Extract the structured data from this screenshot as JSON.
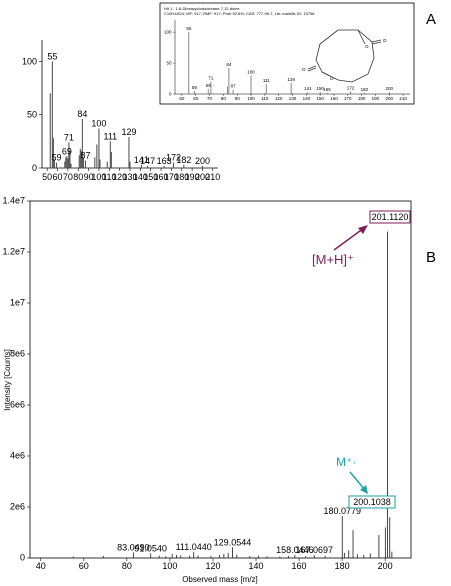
{
  "panels": {
    "a_letter": "A",
    "b_letter": "B"
  },
  "chart_data": [
    {
      "type": "bar",
      "panel": "A",
      "title": "",
      "xlabel": "",
      "ylabel": "",
      "xlim": [
        45,
        215
      ],
      "ylim": [
        0,
        120
      ],
      "x_ticks": [
        50,
        60,
        70,
        80,
        90,
        100,
        110,
        120,
        130,
        140,
        150,
        160,
        170,
        180,
        190,
        200,
        210
      ],
      "y_ticks": [
        0,
        50,
        100
      ],
      "grid": false,
      "color": "#555555",
      "peaks": [
        {
          "x": 53,
          "y": 70
        },
        {
          "x": 55,
          "y": 100
        },
        {
          "x": 56,
          "y": 28
        },
        {
          "x": 57,
          "y": 8
        },
        {
          "x": 59,
          "y": 5
        },
        {
          "x": 67,
          "y": 6
        },
        {
          "x": 68,
          "y": 10
        },
        {
          "x": 69,
          "y": 11
        },
        {
          "x": 70,
          "y": 9
        },
        {
          "x": 71,
          "y": 24
        },
        {
          "x": 72,
          "y": 16
        },
        {
          "x": 73,
          "y": 4
        },
        {
          "x": 81,
          "y": 12
        },
        {
          "x": 82,
          "y": 18
        },
        {
          "x": 83,
          "y": 16
        },
        {
          "x": 84,
          "y": 46
        },
        {
          "x": 85,
          "y": 10
        },
        {
          "x": 87,
          "y": 7
        },
        {
          "x": 96,
          "y": 10
        },
        {
          "x": 98,
          "y": 22
        },
        {
          "x": 100,
          "y": 37
        },
        {
          "x": 101,
          "y": 8
        },
        {
          "x": 108,
          "y": 6
        },
        {
          "x": 111,
          "y": 25
        },
        {
          "x": 112,
          "y": 15
        },
        {
          "x": 129,
          "y": 29
        },
        {
          "x": 130,
          "y": 6
        },
        {
          "x": 141,
          "y": 3
        },
        {
          "x": 147,
          "y": 2
        },
        {
          "x": 163,
          "y": 2
        },
        {
          "x": 172,
          "y": 5
        },
        {
          "x": 182,
          "y": 3
        },
        {
          "x": 200,
          "y": 2
        }
      ],
      "peak_labels": [
        {
          "x": 55,
          "y": 100,
          "text": "55"
        },
        {
          "x": 59,
          "y": 5,
          "text": "59"
        },
        {
          "x": 69,
          "y": 11,
          "text": "69"
        },
        {
          "x": 71,
          "y": 24,
          "text": "71"
        },
        {
          "x": 84,
          "y": 46,
          "text": "84"
        },
        {
          "x": 87,
          "y": 7,
          "text": "87"
        },
        {
          "x": 100,
          "y": 37,
          "text": "100"
        },
        {
          "x": 111,
          "y": 25,
          "text": "111"
        },
        {
          "x": 129,
          "y": 29,
          "text": "129"
        },
        {
          "x": 141,
          "y": 3,
          "text": "141"
        },
        {
          "x": 147,
          "y": 2,
          "text": "147"
        },
        {
          "x": 163,
          "y": 2,
          "text": "163"
        },
        {
          "x": 172,
          "y": 5,
          "text": "172"
        },
        {
          "x": 182,
          "y": 3,
          "text": "182"
        },
        {
          "x": 200,
          "y": 2,
          "text": "200"
        }
      ]
    },
    {
      "type": "bar",
      "panel": "A-inset",
      "header": [
        "Hit 1 : 1,6-Dioxacyclododecane-7,12-dione",
        "C10H16O4; MF: 917; RMF: 917; Prob 92.6%; CAS: 777-95-7; Lib: mainlib; ID: 19756."
      ],
      "xlim": [
        45,
        215
      ],
      "ylim": [
        0,
        110
      ],
      "x_ticks": [
        50,
        60,
        70,
        80,
        90,
        100,
        110,
        120,
        130,
        140,
        150,
        160,
        170,
        180,
        190,
        200,
        210
      ],
      "y_ticks": [
        0,
        50,
        100
      ],
      "color": "#555555",
      "peaks": [
        {
          "x": 55,
          "y": 100
        },
        {
          "x": 59,
          "y": 5
        },
        {
          "x": 69,
          "y": 8
        },
        {
          "x": 71,
          "y": 20
        },
        {
          "x": 83,
          "y": 12
        },
        {
          "x": 84,
          "y": 42
        },
        {
          "x": 87,
          "y": 7
        },
        {
          "x": 100,
          "y": 30
        },
        {
          "x": 111,
          "y": 16
        },
        {
          "x": 129,
          "y": 18
        },
        {
          "x": 141,
          "y": 3
        },
        {
          "x": 150,
          "y": 3
        },
        {
          "x": 155,
          "y": 2
        },
        {
          "x": 172,
          "y": 4
        },
        {
          "x": 182,
          "y": 2
        },
        {
          "x": 200,
          "y": 3
        }
      ],
      "peak_labels": [
        {
          "x": 55,
          "y": 100,
          "text": "55"
        },
        {
          "x": 59,
          "y": 5,
          "text": "59"
        },
        {
          "x": 69,
          "y": 8,
          "text": "69"
        },
        {
          "x": 71,
          "y": 20,
          "text": "71"
        },
        {
          "x": 84,
          "y": 42,
          "text": "84"
        },
        {
          "x": 87,
          "y": 7,
          "text": "87"
        },
        {
          "x": 100,
          "y": 30,
          "text": "100"
        },
        {
          "x": 111,
          "y": 16,
          "text": "111"
        },
        {
          "x": 129,
          "y": 18,
          "text": "129"
        },
        {
          "x": 141,
          "y": 3,
          "text": "141"
        },
        {
          "x": 150,
          "y": 3,
          "text": "150"
        },
        {
          "x": 155,
          "y": 2,
          "text": "155"
        },
        {
          "x": 172,
          "y": 4,
          "text": "172"
        },
        {
          "x": 182,
          "y": 2,
          "text": "182"
        },
        {
          "x": 200,
          "y": 3,
          "text": "200"
        }
      ]
    },
    {
      "type": "bar",
      "panel": "B",
      "title": "",
      "xlabel": "Observed mass [m/z]",
      "ylabel": "Intensity [Counts]",
      "xlim": [
        35,
        212
      ],
      "ylim": [
        0,
        14000000
      ],
      "x_ticks": [
        40,
        60,
        80,
        100,
        120,
        140,
        160,
        180,
        200
      ],
      "y_ticks": [
        {
          "v": 0,
          "label": "0"
        },
        {
          "v": 2000000,
          "label": "2e6"
        },
        {
          "v": 4000000,
          "label": "4e6"
        },
        {
          "v": 6000000,
          "label": "6e6"
        },
        {
          "v": 8000000,
          "label": "8e6"
        },
        {
          "v": 10000000,
          "label": "1e7"
        },
        {
          "v": 12000000,
          "label": "1.2e7"
        },
        {
          "v": 14000000,
          "label": "1.4e7"
        }
      ],
      "color": "#333333",
      "peaks": [
        {
          "x": 55.05,
          "y": 60000
        },
        {
          "x": 69.07,
          "y": 80000
        },
        {
          "x": 83.049,
          "y": 220000
        },
        {
          "x": 91.054,
          "y": 180000
        },
        {
          "x": 95.05,
          "y": 90000
        },
        {
          "x": 98.06,
          "y": 70000
        },
        {
          "x": 101.06,
          "y": 160000
        },
        {
          "x": 103.05,
          "y": 120000
        },
        {
          "x": 105.06,
          "y": 100000
        },
        {
          "x": 109.07,
          "y": 90000
        },
        {
          "x": 111.044,
          "y": 230000
        },
        {
          "x": 113.06,
          "y": 100000
        },
        {
          "x": 119.05,
          "y": 80000
        },
        {
          "x": 123.08,
          "y": 120000
        },
        {
          "x": 125.06,
          "y": 160000
        },
        {
          "x": 127.07,
          "y": 200000
        },
        {
          "x": 129.0544,
          "y": 420000
        },
        {
          "x": 131.07,
          "y": 130000
        },
        {
          "x": 137.08,
          "y": 80000
        },
        {
          "x": 141.09,
          "y": 90000
        },
        {
          "x": 145.06,
          "y": 70000
        },
        {
          "x": 151.08,
          "y": 60000
        },
        {
          "x": 155.08,
          "y": 80000
        },
        {
          "x": 158.0446,
          "y": 120000
        },
        {
          "x": 163.08,
          "y": 70000
        },
        {
          "x": 167.0697,
          "y": 110000
        },
        {
          "x": 172.07,
          "y": 90000
        },
        {
          "x": 180.0779,
          "y": 1650000
        },
        {
          "x": 181.08,
          "y": 200000
        },
        {
          "x": 183.07,
          "y": 300000
        },
        {
          "x": 185.07,
          "y": 1100000
        },
        {
          "x": 187.08,
          "y": 150000
        },
        {
          "x": 190.07,
          "y": 120000
        },
        {
          "x": 193.08,
          "y": 180000
        },
        {
          "x": 197.09,
          "y": 900000
        },
        {
          "x": 200.1038,
          "y": 1200000
        },
        {
          "x": 201.112,
          "y": 12800000
        },
        {
          "x": 202.11,
          "y": 1600000
        },
        {
          "x": 203.11,
          "y": 250000
        }
      ],
      "peak_labels": [
        {
          "x": 83.049,
          "y": 220000,
          "text": "83.0490"
        },
        {
          "x": 91.054,
          "y": 180000,
          "text": "91.0540"
        },
        {
          "x": 111.044,
          "y": 230000,
          "text": "111.0440"
        },
        {
          "x": 129.0544,
          "y": 420000,
          "text": "129.0544"
        },
        {
          "x": 158.0446,
          "y": 120000,
          "text": "158.0446"
        },
        {
          "x": 167.0697,
          "y": 110000,
          "text": "167.0697"
        },
        {
          "x": 180.0779,
          "y": 1650000,
          "text": "180.0779"
        }
      ],
      "annotations": {
        "mh_ion": "[M+H]⁺",
        "mh_value": "201.1120",
        "m_ion": "M⁺·",
        "m_value": "200.1038",
        "mh_color": "#7a1f5c",
        "m_color": "#1aa3a0"
      }
    }
  ]
}
